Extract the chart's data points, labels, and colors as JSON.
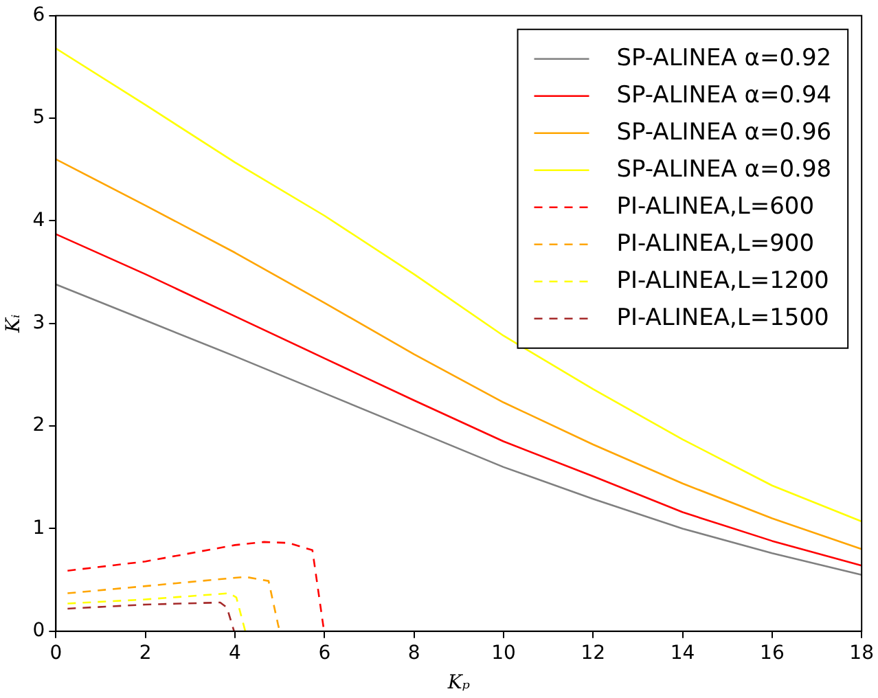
{
  "chart_data": {
    "type": "line",
    "xlabel": "Kₚ",
    "ylabel": "Kᵢ",
    "xlim": [
      0,
      18
    ],
    "ylim": [
      0,
      6
    ],
    "xticks": [
      0,
      2,
      4,
      6,
      8,
      10,
      12,
      14,
      16,
      18
    ],
    "yticks": [
      0,
      1,
      2,
      3,
      4,
      5,
      6
    ],
    "grid": false,
    "legend": "top right",
    "marker": "none",
    "series": [
      {
        "name": "SP-ALINEA α=0.92",
        "color": "#808080",
        "line_style": "solid",
        "x": [
          0,
          2,
          4,
          6,
          8,
          10,
          12,
          14,
          16,
          18
        ],
        "values": [
          3.38,
          3.03,
          2.68,
          2.32,
          1.96,
          1.6,
          1.29,
          1.0,
          0.76,
          0.55
        ]
      },
      {
        "name": "SP-ALINEA α=0.94",
        "color": "#ff0000",
        "line_style": "solid",
        "x": [
          0,
          2,
          4,
          6,
          8,
          10,
          12,
          14,
          16,
          18
        ],
        "values": [
          3.87,
          3.48,
          3.07,
          2.66,
          2.25,
          1.85,
          1.51,
          1.16,
          0.88,
          0.64
        ]
      },
      {
        "name": "SP-ALINEA α=0.96",
        "color": "#ffa500",
        "line_style": "solid",
        "x": [
          0,
          2,
          4,
          6,
          8,
          10,
          12,
          14,
          16,
          18
        ],
        "values": [
          4.6,
          4.15,
          3.69,
          3.2,
          2.7,
          2.23,
          1.82,
          1.44,
          1.1,
          0.8
        ]
      },
      {
        "name": "SP-ALINEA α=0.98",
        "color": "#ffff00",
        "line_style": "solid",
        "x": [
          0,
          2,
          4,
          6,
          8,
          10,
          12,
          14,
          16,
          18
        ],
        "values": [
          5.68,
          5.13,
          4.57,
          4.05,
          3.48,
          2.88,
          2.36,
          1.87,
          1.42,
          1.07
        ]
      },
      {
        "name": "PI-ALINEA,L=600",
        "color": "#ff0000",
        "line_style": "dashed",
        "x": [
          0.26,
          2,
          4,
          4.65,
          5.2,
          5.73,
          5.99
        ],
        "values": [
          0.59,
          0.68,
          0.84,
          0.87,
          0.86,
          0.79,
          0
        ]
      },
      {
        "name": "PI-ALINEA,L=900",
        "color": "#ffa500",
        "line_style": "dashed",
        "x": [
          0.26,
          2,
          4.23,
          4.75,
          4.96,
          5.0
        ],
        "values": [
          0.37,
          0.44,
          0.53,
          0.49,
          0.07,
          0
        ]
      },
      {
        "name": "PI-ALINEA,L=1200",
        "color": "#ffff00",
        "line_style": "dashed",
        "x": [
          0.26,
          2,
          3.87,
          4.03,
          4.23
        ],
        "values": [
          0.27,
          0.31,
          0.37,
          0.33,
          0
        ]
      },
      {
        "name": "PI-ALINEA,L=1500",
        "color": "#a52a2a",
        "line_style": "dashed",
        "x": [
          0.26,
          2,
          3.67,
          3.82,
          3.98
        ],
        "values": [
          0.22,
          0.26,
          0.28,
          0.23,
          0
        ]
      }
    ]
  }
}
